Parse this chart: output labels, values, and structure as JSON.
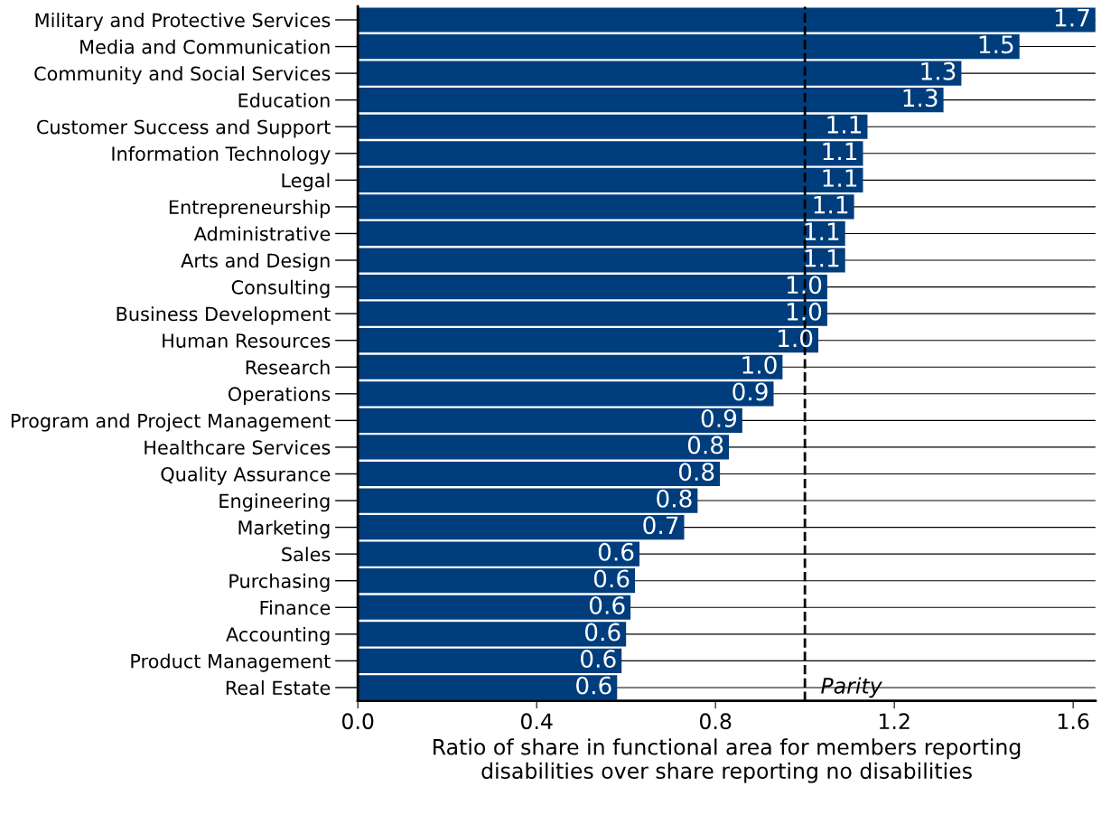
{
  "chart_data": {
    "type": "bar",
    "orientation": "horizontal",
    "xlabel": "Ratio of share in functional area for members reporting\ndisabilities over share reporting no disabilities",
    "categories": [
      "Military and Protective Services",
      "Media and Communication",
      "Community and Social Services",
      "Education",
      "Customer Success and Support",
      "Information Technology",
      "Legal",
      "Entrepreneurship",
      "Administrative",
      "Arts and Design",
      "Consulting",
      "Business Development",
      "Human Resources",
      "Research",
      "Operations",
      "Program and Project Management",
      "Healthcare Services",
      "Quality Assurance",
      "Engineering",
      "Marketing",
      "Sales",
      "Purchasing",
      "Finance",
      "Accounting",
      "Product Management",
      "Real Estate"
    ],
    "values": [
      1.65,
      1.48,
      1.35,
      1.31,
      1.14,
      1.13,
      1.13,
      1.11,
      1.09,
      1.09,
      1.05,
      1.05,
      1.03,
      0.95,
      0.93,
      0.86,
      0.83,
      0.81,
      0.76,
      0.73,
      0.63,
      0.62,
      0.61,
      0.6,
      0.59,
      0.58
    ],
    "value_labels": [
      "1.7",
      "1.5",
      "1.3",
      "1.3",
      "1.1",
      "1.1",
      "1.1",
      "1.1",
      "1.1",
      "1.1",
      "1.0",
      "1.0",
      "1.0",
      "1.0",
      "0.9",
      "0.9",
      "0.8",
      "0.8",
      "0.8",
      "0.7",
      "0.6",
      "0.6",
      "0.6",
      "0.6",
      "0.6",
      "0.6"
    ],
    "color": "#003d7c",
    "xlim": [
      0,
      1.65
    ],
    "xticks": [
      {
        "value": 0,
        "label": "0.0"
      },
      0.4,
      0.8,
      1.2,
      1.6
    ],
    "grid": "y",
    "ref_lines": [
      {
        "axis": "x",
        "value": 1.0,
        "label": "Parity",
        "line_style": "dashed",
        "color": "#000000"
      }
    ]
  }
}
